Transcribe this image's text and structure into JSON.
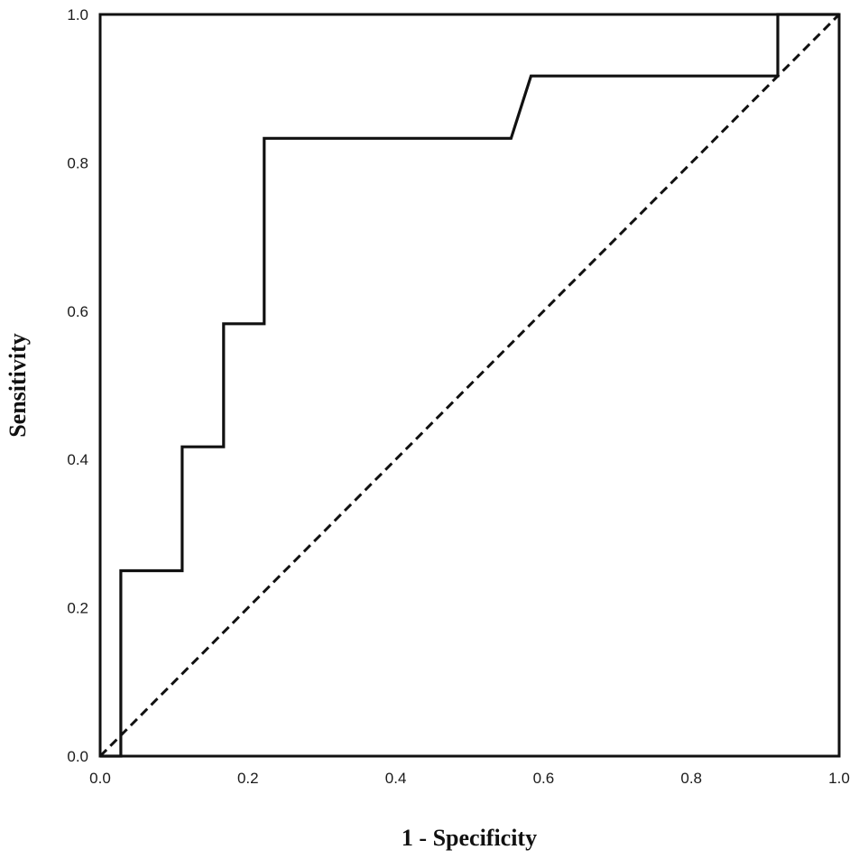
{
  "chart_data": {
    "type": "line",
    "title": "",
    "xlabel": "1 - Specificity",
    "ylabel": "Sensitivity",
    "xlim": [
      0,
      1
    ],
    "ylim": [
      0,
      1
    ],
    "x_ticks": [
      "0.0",
      "0.2",
      "0.4",
      "0.6",
      "0.8",
      "1.0"
    ],
    "y_ticks": [
      "0.0",
      "0.2",
      "0.4",
      "0.6",
      "0.8",
      "1.0"
    ],
    "grid": false,
    "legend": "none",
    "series": [
      {
        "style": "solid",
        "x": [
          0.0,
          0.028,
          0.028,
          0.111,
          0.111,
          0.167,
          0.167,
          0.222,
          0.222,
          0.556,
          0.583,
          0.917,
          0.917,
          1.0
        ],
        "y": [
          0.0,
          0.0,
          0.25,
          0.25,
          0.417,
          0.417,
          0.583,
          0.583,
          0.833,
          0.833,
          0.917,
          0.917,
          1.0,
          1.0
        ]
      },
      {
        "style": "dashed",
        "x": [
          0,
          1
        ],
        "y": [
          0,
          1
        ]
      }
    ],
    "colors": {
      "line": "#111111",
      "background": "#ffffff"
    }
  }
}
